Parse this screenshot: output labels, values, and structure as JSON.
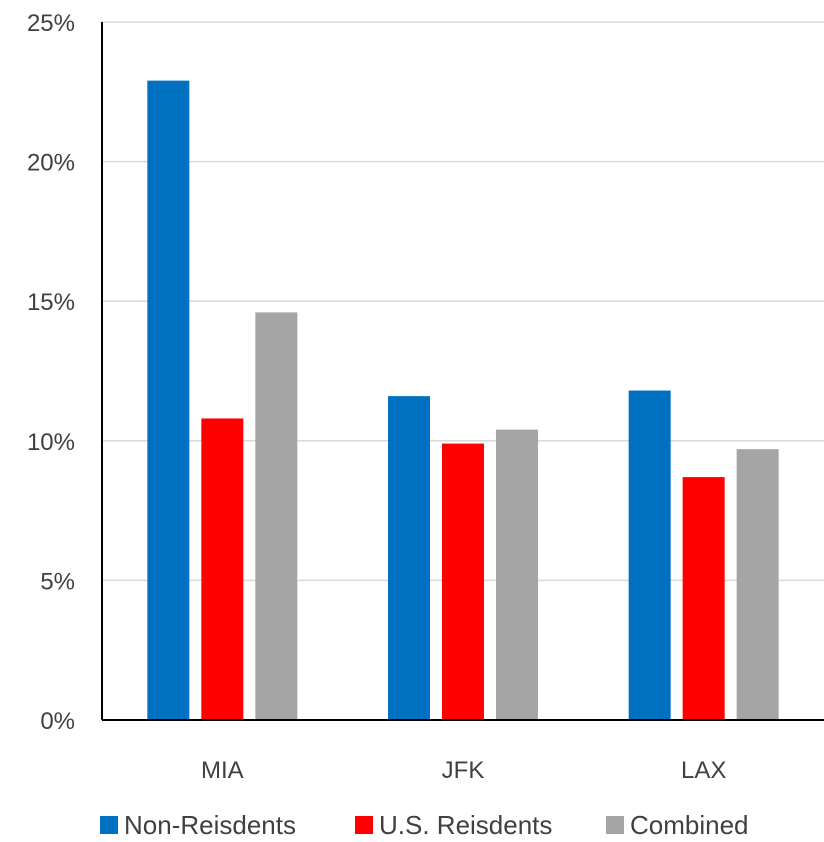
{
  "chart_data": {
    "type": "bar",
    "title": "",
    "xlabel": "",
    "ylabel": "",
    "categories": [
      "MIA",
      "JFK",
      "LAX"
    ],
    "ylim": [
      0,
      25
    ],
    "yticks": [
      0,
      5,
      10,
      15,
      20,
      25
    ],
    "ytick_labels": [
      "0%",
      "5%",
      "10%",
      "15%",
      "20%",
      "25%"
    ],
    "grid": true,
    "legend_position": "bottom",
    "series": [
      {
        "name": "Non-Reisdents",
        "color": "#0070C0",
        "values": [
          22.9,
          11.6,
          11.8
        ]
      },
      {
        "name": "U.S. Reisdents",
        "color": "#FF0000",
        "values": [
          10.8,
          9.9,
          8.7
        ]
      },
      {
        "name": "Combined",
        "color": "#A5A5A5",
        "values": [
          14.6,
          10.4,
          9.7
        ]
      }
    ]
  }
}
